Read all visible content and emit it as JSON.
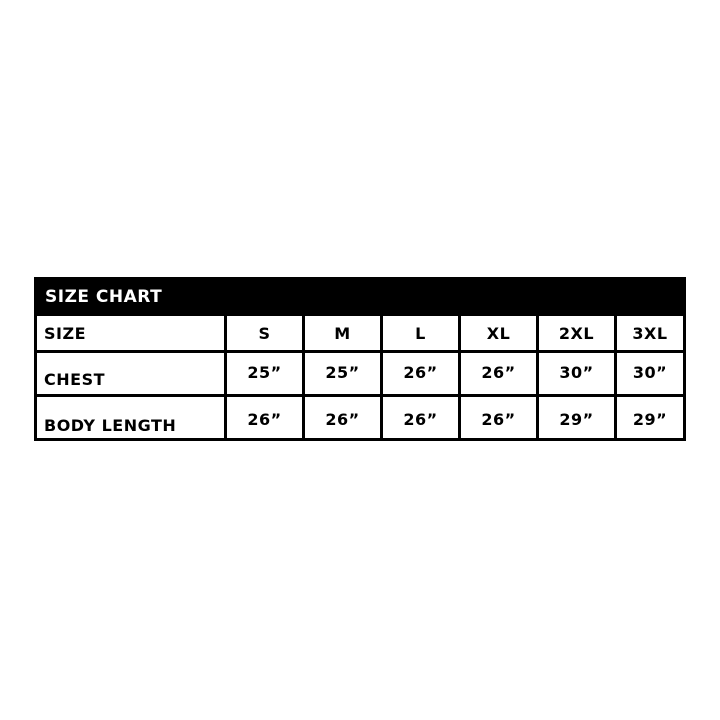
{
  "title": "SIZE CHART",
  "sizes_label": "SIZE",
  "sizes": [
    "S",
    "M",
    "L",
    "XL",
    "2XL",
    "3XL"
  ],
  "rows": [
    {
      "label": "CHEST",
      "values": [
        "25”",
        "25”",
        "26”",
        "26”",
        "30”",
        "30”"
      ]
    },
    {
      "label": "BODY LENGTH",
      "values": [
        "26”",
        "26”",
        "26”",
        "26”",
        "29”",
        "29”"
      ]
    }
  ]
}
